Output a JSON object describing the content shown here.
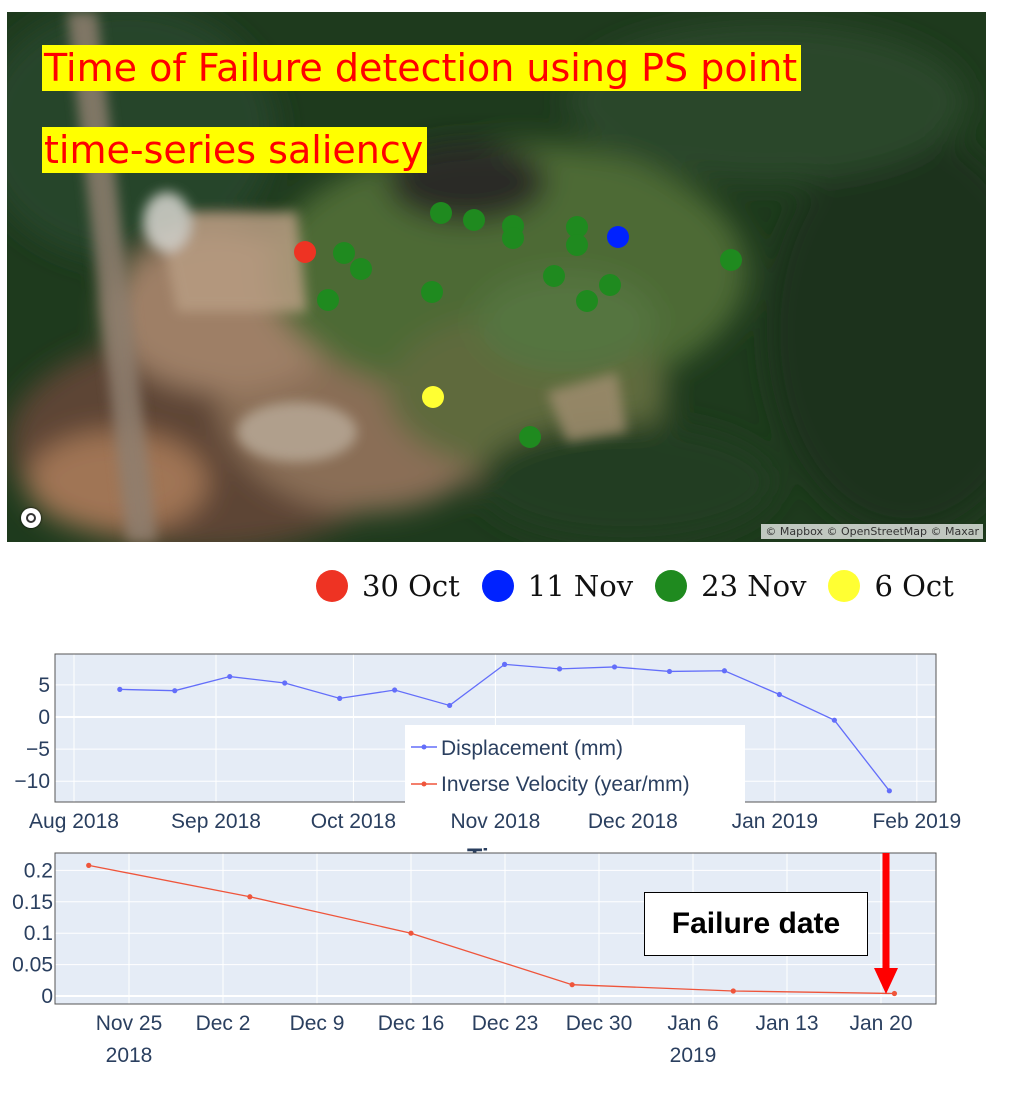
{
  "map": {
    "title_line1": "Time of Failure detection using PS point",
    "title_line2": "time-series saliency",
    "attribution": "© Mapbox © OpenStreetMap © Maxar",
    "legend": [
      {
        "label": "30 Oct",
        "color": "#ee3323"
      },
      {
        "label": "11 Nov",
        "color": "#0022ff"
      },
      {
        "label": "23 Nov",
        "color": "#1f8a1f"
      },
      {
        "label": "6 Oct",
        "color": "#ffff33"
      }
    ],
    "colors": {
      "red": "#ee3323",
      "blue": "#0022ff",
      "green": "#1f8a1f",
      "yellow": "#ffff33"
    }
  },
  "annotation": {
    "failure_label": "Failure date",
    "arrow_color": "#ff0000"
  },
  "chart_data": [
    {
      "type": "line",
      "xlabel": "Time",
      "x_ticks": [
        "Aug 2018",
        "Sep 2018",
        "Oct 2018",
        "Nov 2018",
        "Dec 2018",
        "Jan 2019",
        "Feb 2019"
      ],
      "y_ticks": [
        "5",
        "0",
        "−5",
        "−10"
      ],
      "ylim": [
        -12,
        9
      ],
      "grid": true,
      "legend_position": "center-right",
      "series": [
        {
          "name": "Displacement (mm)",
          "color": "#636efa",
          "points": [
            {
              "x": "2018-08-11",
              "y": 4.3
            },
            {
              "x": "2018-08-23",
              "y": 4.1
            },
            {
              "x": "2018-09-04",
              "y": 6.3
            },
            {
              "x": "2018-09-16",
              "y": 5.3
            },
            {
              "x": "2018-09-28",
              "y": 2.9
            },
            {
              "x": "2018-10-10",
              "y": 4.2
            },
            {
              "x": "2018-10-22",
              "y": 1.8
            },
            {
              "x": "2018-11-03",
              "y": 8.2
            },
            {
              "x": "2018-11-15",
              "y": 7.5
            },
            {
              "x": "2018-11-27",
              "y": 7.8
            },
            {
              "x": "2018-12-09",
              "y": 7.1
            },
            {
              "x": "2018-12-21",
              "y": 7.2
            },
            {
              "x": "2019-01-02",
              "y": 3.5
            },
            {
              "x": "2019-01-14",
              "y": -0.5
            },
            {
              "x": "2019-01-26",
              "y": -11.5
            }
          ]
        },
        {
          "name": "Inverse Velocity (year/mm)",
          "color": "#ef553b"
        }
      ]
    },
    {
      "type": "line",
      "x_ticks": [
        "Nov 25\n2018",
        "Dec 2",
        "Dec 9",
        "Dec 16",
        "Dec 23",
        "Dec 30",
        "Jan 6\n2019",
        "Jan 13",
        "Jan 20"
      ],
      "y_ticks": [
        "0.2",
        "0.15",
        "0.1",
        "0.05",
        "0"
      ],
      "ylim": [
        -0.01,
        0.225
      ],
      "grid": true,
      "series": [
        {
          "name": "Inverse Velocity (year/mm)",
          "color": "#ef553b",
          "points": [
            {
              "x": "2018-11-22",
              "y": 0.208
            },
            {
              "x": "2018-12-04",
              "y": 0.158
            },
            {
              "x": "2018-12-16",
              "y": 0.1
            },
            {
              "x": "2018-12-28",
              "y": 0.018
            },
            {
              "x": "2019-01-09",
              "y": 0.008
            },
            {
              "x": "2019-01-21",
              "y": 0.004
            }
          ]
        }
      ]
    }
  ]
}
